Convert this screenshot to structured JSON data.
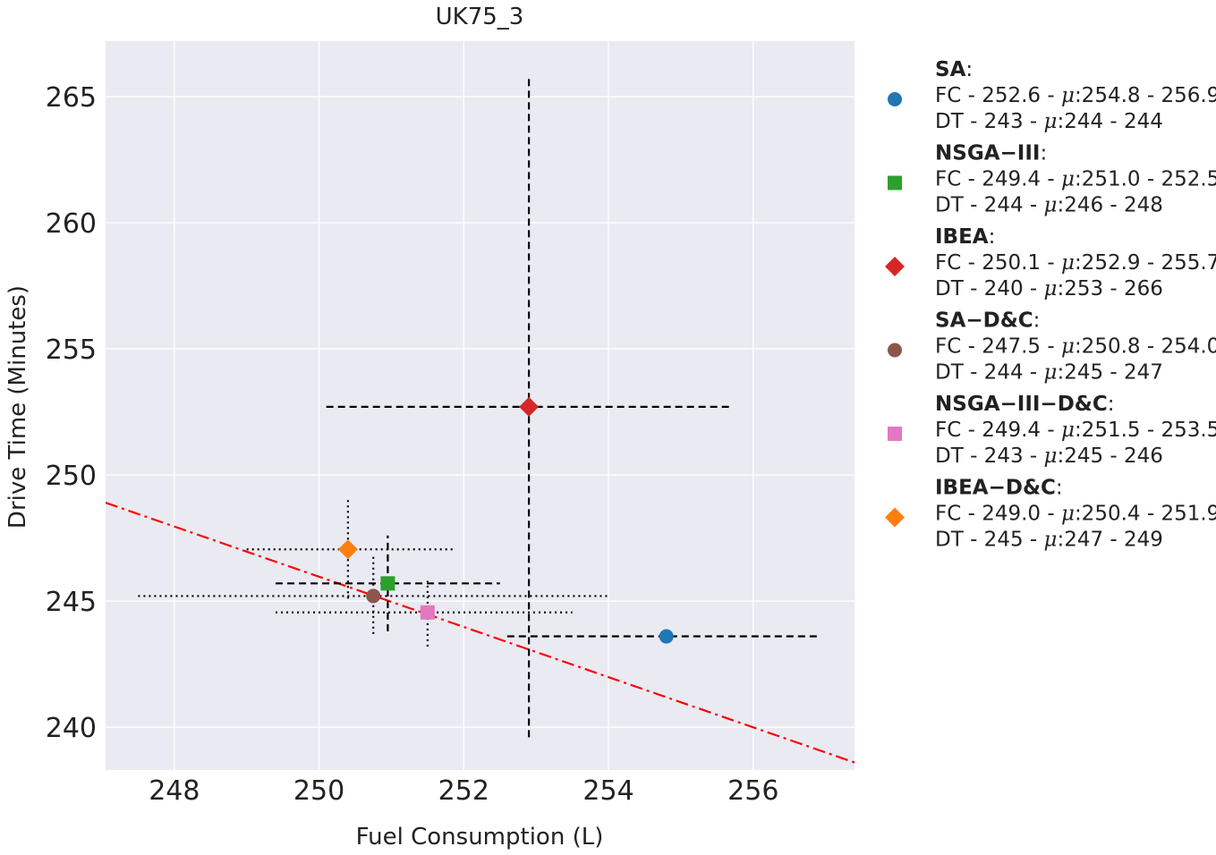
{
  "chart_data": {
    "type": "scatter",
    "title": "UK75_3",
    "xlabel": "Fuel Consumption (L)",
    "ylabel": "Drive Time (Minutes)",
    "xlim": [
      247.05,
      257.4
    ],
    "ylim": [
      238.3,
      267.2
    ],
    "xticks": [
      248,
      250,
      252,
      254,
      256
    ],
    "yticks": [
      240,
      245,
      250,
      255,
      260,
      265
    ],
    "grid": true,
    "legend_position": "outside-right",
    "trend_line": {
      "style": "dash-dot",
      "color": "#ff0000",
      "points": [
        [
          247.05,
          248.9
        ],
        [
          257.4,
          238.6
        ]
      ]
    },
    "series": [
      {
        "name": "SA",
        "marker": "circle",
        "color": "#1f77b4",
        "errorbar_style": "dashed",
        "x": 254.8,
        "y": 243.6,
        "x_range": [
          252.6,
          256.9
        ],
        "y_range": [
          243.5,
          243.7
        ],
        "legend_fc": "FC - 252.6 - ",
        "legend_fc_mu": ":254.8 - 256.9",
        "legend_dt": "DT - 243 - ",
        "legend_dt_mu": ":244 - 244"
      },
      {
        "name": "NSGA−III",
        "marker": "square",
        "color": "#2ca02c",
        "errorbar_style": "dashed",
        "x": 250.95,
        "y": 245.7,
        "x_range": [
          249.4,
          252.5
        ],
        "y_range": [
          243.8,
          247.6
        ],
        "legend_fc": "FC - 249.4 - ",
        "legend_fc_mu": ":251.0 - 252.5",
        "legend_dt": "DT - 244 - ",
        "legend_dt_mu": ":246 - 248"
      },
      {
        "name": "IBEA",
        "marker": "diamond",
        "color": "#d62728",
        "errorbar_style": "dashed",
        "x": 252.9,
        "y": 252.7,
        "x_range": [
          250.1,
          255.7
        ],
        "y_range": [
          239.6,
          265.8
        ],
        "legend_fc": "FC - 250.1 - ",
        "legend_fc_mu": ":252.9 - 255.7",
        "legend_dt": "DT - 240 - ",
        "legend_dt_mu": ":253 - 266"
      },
      {
        "name": "SA−D&C",
        "marker": "circle",
        "color": "#8c564b",
        "errorbar_style": "dotted",
        "x": 250.75,
        "y": 245.2,
        "x_range": [
          247.5,
          254.0
        ],
        "y_range": [
          243.7,
          246.8
        ],
        "legend_fc": "FC - 247.5 - ",
        "legend_fc_mu": ":250.8 - 254.0",
        "legend_dt": "DT - 244 - ",
        "legend_dt_mu": ":245 - 247"
      },
      {
        "name": "NSGA−III−D&C",
        "marker": "square",
        "color": "#e377c2",
        "errorbar_style": "dotted",
        "x": 251.5,
        "y": 244.55,
        "x_range": [
          249.4,
          253.5
        ],
        "y_range": [
          243.2,
          245.8
        ],
        "legend_fc": "FC - 249.4 - ",
        "legend_fc_mu": ":251.5 - 253.5",
        "legend_dt": "DT - 243 - ",
        "legend_dt_mu": ":245 - 246"
      },
      {
        "name": "IBEA−D&C",
        "marker": "diamond",
        "color": "#ff7f0e",
        "errorbar_style": "dotted",
        "x": 250.4,
        "y": 247.05,
        "x_range": [
          249.0,
          251.85
        ],
        "y_range": [
          245.1,
          249.0
        ],
        "legend_fc": "FC - 249.0 - ",
        "legend_fc_mu": ":250.4 - 251.9",
        "legend_dt": "DT - 245 - ",
        "legend_dt_mu": ":247 - 249"
      }
    ],
    "mu_symbol": "μ",
    "colon": ":"
  },
  "colors": {
    "plot_background": "#eaeaf2",
    "grid": "#ffffff",
    "errorbar": "#000000"
  }
}
